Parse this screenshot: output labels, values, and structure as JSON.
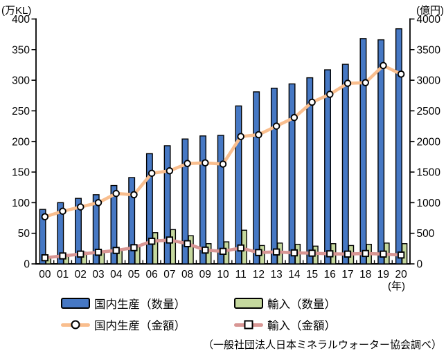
{
  "axes": {
    "left_unit": "(万KL)",
    "right_unit": "(億円)",
    "x_unit": "(年)"
  },
  "source_note": "（一般社団法人日本ミネラルウォーター協会調べ）",
  "colors": {
    "domestic_volume_bar": "#4678C4",
    "import_volume_bar": "#C5D89E",
    "domestic_value_line": "#F9BE8E",
    "import_value_line": "#D89694",
    "marker_fill": "#FFFFFF",
    "outline": "#000000"
  },
  "chart_data": {
    "type": "bar",
    "subtype": "bar-line-combo",
    "grid": false,
    "legend_position": "bottom",
    "categories": [
      "00",
      "01",
      "02",
      "03",
      "04",
      "05",
      "06",
      "07",
      "08",
      "09",
      "10",
      "11",
      "12",
      "13",
      "14",
      "15",
      "16",
      "17",
      "18",
      "19",
      "20"
    ],
    "left_axis": {
      "unit": "(万KL)",
      "min": 0,
      "max": 400,
      "step": 50
    },
    "right_axis": {
      "unit": "(億円)",
      "min": 0,
      "max": 4000,
      "step": 500
    },
    "series": [
      {
        "id": "domestic-volume",
        "name": "国内生産（数量）",
        "type": "bar",
        "axis": "left",
        "color": "#4678C4",
        "values": [
          89,
          100,
          107,
          113,
          128,
          141,
          180,
          193,
          204,
          209,
          210,
          258,
          281,
          287,
          294,
          304,
          317,
          326,
          368,
          366,
          384
        ]
      },
      {
        "id": "import-volume",
        "name": "輸入（数量）",
        "type": "bar",
        "axis": "left",
        "color": "#C5D89E",
        "values": [
          11,
          15,
          19,
          21,
          23,
          28,
          51,
          56,
          46,
          33,
          36,
          55,
          30,
          34,
          32,
          29,
          33,
          30,
          32,
          34,
          33
        ]
      },
      {
        "id": "domestic-value",
        "name": "国内生産（金額）",
        "type": "line",
        "marker": "circle",
        "axis": "right",
        "color": "#F9BE8E",
        "values": [
          770,
          860,
          930,
          1000,
          1150,
          1130,
          1480,
          1520,
          1640,
          1650,
          1630,
          2080,
          2110,
          2250,
          2390,
          2640,
          2770,
          2950,
          2960,
          3240,
          3100
        ]
      },
      {
        "id": "import-value",
        "name": "輸入（金額）",
        "type": "line",
        "marker": "square",
        "axis": "right",
        "color": "#D89694",
        "values": [
          100,
          130,
          160,
          190,
          220,
          265,
          370,
          390,
          330,
          225,
          205,
          260,
          185,
          195,
          180,
          175,
          165,
          160,
          170,
          160,
          145
        ]
      }
    ]
  }
}
